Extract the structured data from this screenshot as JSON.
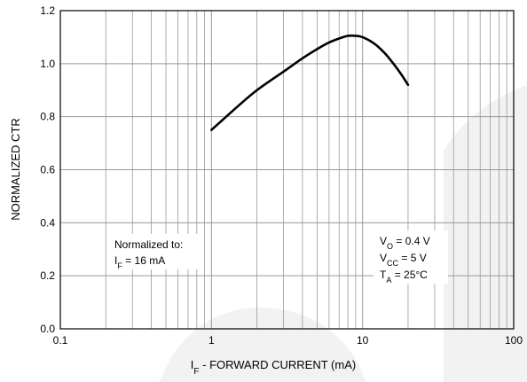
{
  "colors": {
    "grid": "#999999",
    "frame": "#000000",
    "curve": "#000000",
    "watermark": "#f2f2f2"
  },
  "chart_data": {
    "type": "line",
    "xscale": "log",
    "xlim": [
      0.1,
      100
    ],
    "ylim": [
      0.0,
      1.2
    ],
    "x_tick_labels": [
      "0.1",
      "1",
      "10",
      "100"
    ],
    "y_tick_labels": [
      "0.0",
      "0.2",
      "0.4",
      "0.6",
      "0.8",
      "1.0",
      "1.2"
    ],
    "ylabel": "NORMALIZED CTR",
    "xlabel": {
      "main": "I",
      "sub": "F",
      "rest": " - FORWARD CURRENT (mA)"
    },
    "grid": true,
    "series": [
      {
        "x": [
          1,
          1.5,
          2,
          3,
          4,
          5,
          6,
          7,
          8,
          9,
          10,
          12,
          14,
          16,
          18,
          20
        ],
        "y": [
          0.75,
          0.84,
          0.9,
          0.97,
          1.02,
          1.055,
          1.08,
          1.095,
          1.105,
          1.105,
          1.1,
          1.075,
          1.04,
          1.0,
          0.96,
          0.92
        ]
      }
    ],
    "annotations": {
      "left": {
        "line1": "Normalized to:",
        "line2": {
          "main": "I",
          "sub": "F",
          "rest": " = 16 mA"
        }
      },
      "right": {
        "line1": {
          "main": "V",
          "sub": "O",
          "rest": " = 0.4 V"
        },
        "line2": {
          "main": "V",
          "sub": "CC",
          "rest": " = 5 V"
        },
        "line3": {
          "main": "T",
          "sub": "A",
          "rest": " = 25°C"
        }
      }
    }
  }
}
